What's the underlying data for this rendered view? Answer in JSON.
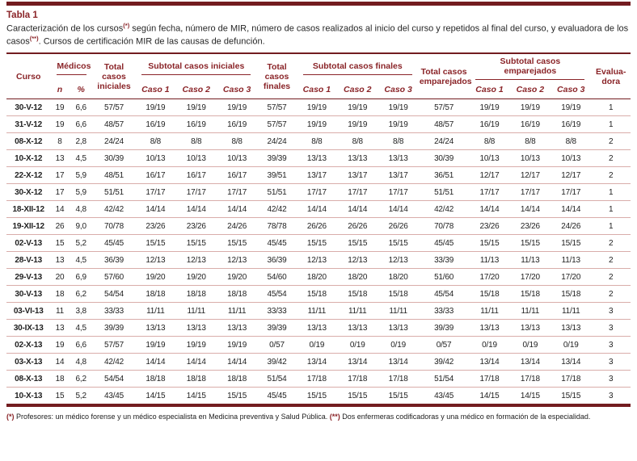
{
  "page": {
    "title": "Tabla 1",
    "caption": {
      "part1": "Caracterización de los cursos",
      "marker1": "(*)",
      "part2": " según fecha, número de MIR, número de casos realizados al inicio del curso y repetidos al final del curso, y evaluadora de los casos",
      "marker2": "(**)",
      "part3": ". Cursos de certificación MIR de las causas de defunción."
    },
    "footnote": {
      "marker1": "(*)",
      "text1": " Profesores: un médico forense y un médico especialista en Medicina preventiva y Salud Pública. ",
      "marker2": "(**)",
      "text2": " Dos enfermeras codificadoras y una médico en formación de la especialidad."
    }
  },
  "colors": {
    "maroon": "#8a2428",
    "rule": "#731c20",
    "divider": "#d9adaa",
    "ink": "#1f1f1f"
  },
  "table": {
    "headers": {
      "curso": "Curso",
      "medicos": "Médicos",
      "n": "n",
      "pct": "%",
      "total_iniciales": "Total casos iniciales",
      "subtotal_iniciales": "Subtotal casos iniciales",
      "caso1": "Caso 1",
      "caso2": "Caso 2",
      "caso3": "Caso 3",
      "total_finales": "Total casos finales",
      "subtotal_finales": "Subtotal casos finales",
      "total_emparejados": "Total casos emparejados",
      "subtotal_emparejados": "Subtotal casos emparejados",
      "evaluadora": "Evalua­dora"
    },
    "rows": [
      [
        "30-V-12",
        "19",
        "6,6",
        "57/57",
        "19/19",
        "19/19",
        "19/19",
        "57/57",
        "19/19",
        "19/19",
        "19/19",
        "57/57",
        "19/19",
        "19/19",
        "19/19",
        "1"
      ],
      [
        "31-V-12",
        "19",
        "6,6",
        "48/57",
        "16/19",
        "16/19",
        "16/19",
        "57/57",
        "19/19",
        "19/19",
        "19/19",
        "48/57",
        "16/19",
        "16/19",
        "16/19",
        "1"
      ],
      [
        "08-X-12",
        "8",
        "2,8",
        "24/24",
        "8/8",
        "8/8",
        "8/8",
        "24/24",
        "8/8",
        "8/8",
        "8/8",
        "24/24",
        "8/8",
        "8/8",
        "8/8",
        "2"
      ],
      [
        "10-X-12",
        "13",
        "4,5",
        "30/39",
        "10/13",
        "10/13",
        "10/13",
        "39/39",
        "13/13",
        "13/13",
        "13/13",
        "30/39",
        "10/13",
        "10/13",
        "10/13",
        "2"
      ],
      [
        "22-X-12",
        "17",
        "5,9",
        "48/51",
        "16/17",
        "16/17",
        "16/17",
        "39/51",
        "13/17",
        "13/17",
        "13/17",
        "36/51",
        "12/17",
        "12/17",
        "12/17",
        "2"
      ],
      [
        "30-X-12",
        "17",
        "5,9",
        "51/51",
        "17/17",
        "17/17",
        "17/17",
        "51/51",
        "17/17",
        "17/17",
        "17/17",
        "51/51",
        "17/17",
        "17/17",
        "17/17",
        "1"
      ],
      [
        "18-XII-12",
        "14",
        "4,8",
        "42/42",
        "14/14",
        "14/14",
        "14/14",
        "42/42",
        "14/14",
        "14/14",
        "14/14",
        "42/42",
        "14/14",
        "14/14",
        "14/14",
        "1"
      ],
      [
        "19-XII-12",
        "26",
        "9,0",
        "70/78",
        "23/26",
        "23/26",
        "24/26",
        "78/78",
        "26/26",
        "26/26",
        "26/26",
        "70/78",
        "23/26",
        "23/26",
        "24/26",
        "1"
      ],
      [
        "02-V-13",
        "15",
        "5,2",
        "45/45",
        "15/15",
        "15/15",
        "15/15",
        "45/45",
        "15/15",
        "15/15",
        "15/15",
        "45/45",
        "15/15",
        "15/15",
        "15/15",
        "2"
      ],
      [
        "28-V-13",
        "13",
        "4,5",
        "36/39",
        "12/13",
        "12/13",
        "12/13",
        "36/39",
        "12/13",
        "12/13",
        "12/13",
        "33/39",
        "11/13",
        "11/13",
        "11/13",
        "2"
      ],
      [
        "29-V-13",
        "20",
        "6,9",
        "57/60",
        "19/20",
        "19/20",
        "19/20",
        "54/60",
        "18/20",
        "18/20",
        "18/20",
        "51/60",
        "17/20",
        "17/20",
        "17/20",
        "2"
      ],
      [
        "30-V-13",
        "18",
        "6,2",
        "54/54",
        "18/18",
        "18/18",
        "18/18",
        "45/54",
        "15/18",
        "15/18",
        "15/18",
        "45/54",
        "15/18",
        "15/18",
        "15/18",
        "2"
      ],
      [
        "03-VI-13",
        "11",
        "3,8",
        "33/33",
        "11/11",
        "11/11",
        "11/11",
        "33/33",
        "11/11",
        "11/11",
        "11/11",
        "33/33",
        "11/11",
        "11/11",
        "11/11",
        "3"
      ],
      [
        "30-IX-13",
        "13",
        "4,5",
        "39/39",
        "13/13",
        "13/13",
        "13/13",
        "39/39",
        "13/13",
        "13/13",
        "13/13",
        "39/39",
        "13/13",
        "13/13",
        "13/13",
        "3"
      ],
      [
        "02-X-13",
        "19",
        "6,6",
        "57/57",
        "19/19",
        "19/19",
        "19/19",
        "0/57",
        "0/19",
        "0/19",
        "0/19",
        "0/57",
        "0/19",
        "0/19",
        "0/19",
        "3"
      ],
      [
        "03-X-13",
        "14",
        "4,8",
        "42/42",
        "14/14",
        "14/14",
        "14/14",
        "39/42",
        "13/14",
        "13/14",
        "13/14",
        "39/42",
        "13/14",
        "13/14",
        "13/14",
        "3"
      ],
      [
        "08-X-13",
        "18",
        "6,2",
        "54/54",
        "18/18",
        "18/18",
        "18/18",
        "51/54",
        "17/18",
        "17/18",
        "17/18",
        "51/54",
        "17/18",
        "17/18",
        "17/18",
        "3"
      ],
      [
        "10-X-13",
        "15",
        "5,2",
        "43/45",
        "14/15",
        "14/15",
        "15/15",
        "45/45",
        "15/15",
        "15/15",
        "15/15",
        "43/45",
        "14/15",
        "14/15",
        "15/15",
        "3"
      ]
    ]
  }
}
